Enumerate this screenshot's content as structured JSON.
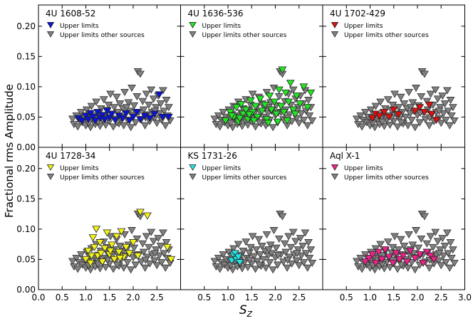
{
  "chart_data": {
    "type": "scatter",
    "ylabel": "Fractional rms Amplitude",
    "xlabel_main": "S",
    "xlabel_sub": "Z",
    "xlim": [
      0.0,
      3.0
    ],
    "ylim": [
      0.0,
      0.235
    ],
    "xticks": [
      "0.0",
      "0.5",
      "1.0",
      "1.5",
      "2.0",
      "2.5",
      "3.0"
    ],
    "yticks": [
      "0.00",
      "0.05",
      "0.10",
      "0.15",
      "0.20"
    ],
    "xtick_values": [
      0.0,
      0.5,
      1.0,
      1.5,
      2.0,
      2.5,
      3.0
    ],
    "ytick_values": [
      0.0,
      0.05,
      0.1,
      0.15,
      0.2
    ],
    "legend_label_source": "Upper limits",
    "legend_label_others": "Upper limits other sources",
    "others_color": "#808080",
    "panels": [
      {
        "title": "4U 1608-52",
        "color": "#0a14d6",
        "col": 0,
        "row": 0
      },
      {
        "title": "4U 1636-536",
        "color": "#22e622",
        "col": 1,
        "row": 0
      },
      {
        "title": "4U 1702-429",
        "color": "#e01010",
        "col": 2,
        "row": 0
      },
      {
        "title": "4U 1728-34",
        "color": "#f2f218",
        "col": 0,
        "row": 1
      },
      {
        "title": "KS 1731-26",
        "color": "#20e8e8",
        "col": 1,
        "row": 1
      },
      {
        "title": "Aql X-1",
        "color": "#f0208c",
        "col": 2,
        "row": 1
      }
    ],
    "gray_points": [
      [
        0.72,
        0.047
      ],
      [
        0.75,
        0.038
      ],
      [
        0.8,
        0.052
      ],
      [
        0.83,
        0.034
      ],
      [
        0.86,
        0.045
      ],
      [
        0.9,
        0.058
      ],
      [
        0.93,
        0.041
      ],
      [
        0.96,
        0.05
      ],
      [
        1.0,
        0.036
      ],
      [
        1.02,
        0.062
      ],
      [
        1.05,
        0.047
      ],
      [
        1.08,
        0.055
      ],
      [
        1.1,
        0.033
      ],
      [
        1.12,
        0.068
      ],
      [
        1.15,
        0.044
      ],
      [
        1.18,
        0.052
      ],
      [
        1.2,
        0.038
      ],
      [
        1.22,
        0.075
      ],
      [
        1.25,
        0.048
      ],
      [
        1.28,
        0.057
      ],
      [
        1.3,
        0.035
      ],
      [
        1.32,
        0.064
      ],
      [
        1.35,
        0.045
      ],
      [
        1.38,
        0.079
      ],
      [
        1.4,
        0.052
      ],
      [
        1.42,
        0.037
      ],
      [
        1.45,
        0.061
      ],
      [
        1.48,
        0.07
      ],
      [
        1.5,
        0.043
      ],
      [
        1.52,
        0.088
      ],
      [
        1.55,
        0.055
      ],
      [
        1.58,
        0.034
      ],
      [
        1.6,
        0.066
      ],
      [
        1.62,
        0.047
      ],
      [
        1.65,
        0.083
      ],
      [
        1.68,
        0.058
      ],
      [
        1.7,
        0.039
      ],
      [
        1.72,
        0.072
      ],
      [
        1.75,
        0.05
      ],
      [
        1.78,
        0.064
      ],
      [
        1.8,
        0.036
      ],
      [
        1.82,
        0.091
      ],
      [
        1.85,
        0.056
      ],
      [
        1.88,
        0.045
      ],
      [
        1.9,
        0.074
      ],
      [
        1.92,
        0.06
      ],
      [
        1.95,
        0.033
      ],
      [
        1.97,
        0.098
      ],
      [
        2.0,
        0.053
      ],
      [
        2.02,
        0.069
      ],
      [
        2.05,
        0.041
      ],
      [
        2.08,
        0.084
      ],
      [
        2.1,
        0.125
      ],
      [
        2.12,
        0.058
      ],
      [
        2.15,
        0.121
      ],
      [
        2.17,
        0.046
      ],
      [
        2.2,
        0.076
      ],
      [
        2.22,
        0.062
      ],
      [
        2.25,
        0.036
      ],
      [
        2.28,
        0.088
      ],
      [
        2.3,
        0.054
      ],
      [
        2.33,
        0.07
      ],
      [
        2.35,
        0.043
      ],
      [
        2.38,
        0.095
      ],
      [
        2.4,
        0.058
      ],
      [
        2.43,
        0.08
      ],
      [
        2.45,
        0.048
      ],
      [
        2.48,
        0.066
      ],
      [
        2.5,
        0.04
      ],
      [
        2.53,
        0.085
      ],
      [
        2.55,
        0.056
      ],
      [
        2.58,
        0.072
      ],
      [
        2.6,
        0.045
      ],
      [
        2.63,
        0.094
      ],
      [
        2.65,
        0.06
      ],
      [
        2.68,
        0.036
      ],
      [
        2.7,
        0.078
      ],
      [
        2.72,
        0.052
      ],
      [
        2.75,
        0.066
      ],
      [
        2.78,
        0.044
      ],
      [
        1.06,
        0.04
      ],
      [
        1.26,
        0.042
      ],
      [
        1.46,
        0.049
      ],
      [
        1.66,
        0.041
      ],
      [
        1.86,
        0.066
      ],
      [
        2.06,
        0.057
      ],
      [
        2.26,
        0.049
      ],
      [
        2.46,
        0.06
      ]
    ],
    "source_points": [
      [
        [
          0.85,
          0.048
        ],
        [
          0.92,
          0.044
        ],
        [
          1.0,
          0.052
        ],
        [
          1.05,
          0.046
        ],
        [
          1.1,
          0.056
        ],
        [
          1.15,
          0.05
        ],
        [
          1.2,
          0.044
        ],
        [
          1.25,
          0.058
        ],
        [
          1.3,
          0.048
        ],
        [
          1.35,
          0.053
        ],
        [
          1.4,
          0.046
        ],
        [
          1.45,
          0.06
        ],
        [
          1.5,
          0.049
        ],
        [
          1.55,
          0.055
        ],
        [
          1.62,
          0.045
        ],
        [
          1.7,
          0.052
        ],
        [
          1.78,
          0.048
        ],
        [
          1.85,
          0.056
        ],
        [
          1.92,
          0.044
        ],
        [
          2.0,
          0.05
        ],
        [
          2.08,
          0.058
        ],
        [
          2.15,
          0.046
        ],
        [
          2.25,
          0.052
        ],
        [
          2.35,
          0.048
        ],
        [
          2.45,
          0.055
        ],
        [
          2.55,
          0.087
        ],
        [
          2.62,
          0.05
        ],
        [
          2.75,
          0.05
        ]
      ],
      [
        [
          0.95,
          0.044
        ],
        [
          1.05,
          0.058
        ],
        [
          1.12,
          0.05
        ],
        [
          1.18,
          0.066
        ],
        [
          1.22,
          0.042
        ],
        [
          1.28,
          0.071
        ],
        [
          1.32,
          0.055
        ],
        [
          1.38,
          0.062
        ],
        [
          1.42,
          0.046
        ],
        [
          1.48,
          0.077
        ],
        [
          1.52,
          0.058
        ],
        [
          1.58,
          0.068
        ],
        [
          1.62,
          0.05
        ],
        [
          1.68,
          0.08
        ],
        [
          1.72,
          0.06
        ],
        [
          1.78,
          0.07
        ],
        [
          1.82,
          0.046
        ],
        [
          1.88,
          0.085
        ],
        [
          1.92,
          0.062
        ],
        [
          1.98,
          0.075
        ],
        [
          2.02,
          0.055
        ],
        [
          2.08,
          0.095
        ],
        [
          2.12,
          0.068
        ],
        [
          2.15,
          0.128
        ],
        [
          2.18,
          0.058
        ],
        [
          2.22,
          0.09
        ],
        [
          2.28,
          0.075
        ],
        [
          2.32,
          0.106
        ],
        [
          2.38,
          0.062
        ],
        [
          2.45,
          0.085
        ],
        [
          2.52,
          0.072
        ],
        [
          2.6,
          0.1
        ],
        [
          2.68,
          0.066
        ],
        [
          2.75,
          0.09
        ],
        [
          1.25,
          0.048
        ],
        [
          1.55,
          0.044
        ],
        [
          1.85,
          0.04
        ],
        [
          2.05,
          0.042
        ],
        [
          2.25,
          0.044
        ],
        [
          2.42,
          0.055
        ],
        [
          1.08,
          0.052
        ],
        [
          1.45,
          0.054
        ]
      ],
      [
        [
          1.05,
          0.048
        ],
        [
          1.12,
          0.055
        ],
        [
          1.2,
          0.052
        ],
        [
          1.3,
          0.058
        ],
        [
          1.4,
          0.05
        ],
        [
          1.5,
          0.062
        ],
        [
          1.6,
          0.054
        ],
        [
          1.95,
          0.06
        ],
        [
          2.05,
          0.066
        ],
        [
          2.15,
          0.058
        ],
        [
          2.25,
          0.07
        ],
        [
          2.3,
          0.055
        ],
        [
          2.4,
          0.045
        ]
      ],
      [
        [
          1.0,
          0.05
        ],
        [
          1.05,
          0.064
        ],
        [
          1.1,
          0.044
        ],
        [
          1.15,
          0.086
        ],
        [
          1.18,
          0.07
        ],
        [
          1.22,
          0.1
        ],
        [
          1.25,
          0.056
        ],
        [
          1.3,
          0.078
        ],
        [
          1.35,
          0.046
        ],
        [
          1.4,
          0.068
        ],
        [
          1.45,
          0.094
        ],
        [
          1.5,
          0.058
        ],
        [
          1.55,
          0.074
        ],
        [
          1.6,
          0.05
        ],
        [
          1.65,
          0.088
        ],
        [
          1.7,
          0.062
        ],
        [
          1.75,
          0.096
        ],
        [
          1.8,
          0.054
        ],
        [
          1.85,
          0.07
        ],
        [
          1.92,
          0.06
        ],
        [
          2.0,
          0.078
        ],
        [
          2.1,
          0.056
        ],
        [
          2.15,
          0.128
        ],
        [
          2.3,
          0.122
        ],
        [
          2.72,
          0.07
        ],
        [
          2.8,
          0.05
        ],
        [
          1.12,
          0.056
        ],
        [
          1.32,
          0.06
        ],
        [
          1.52,
          0.064
        ],
        [
          1.72,
          0.052
        ]
      ],
      [
        [
          1.08,
          0.048
        ],
        [
          1.12,
          0.056
        ],
        [
          1.15,
          0.06
        ],
        [
          1.18,
          0.05
        ],
        [
          1.22,
          0.054
        ],
        [
          1.25,
          0.045
        ]
      ],
      [
        [
          0.9,
          0.046
        ],
        [
          0.98,
          0.052
        ],
        [
          1.05,
          0.058
        ],
        [
          1.12,
          0.044
        ],
        [
          1.18,
          0.062
        ],
        [
          1.25,
          0.05
        ],
        [
          1.32,
          0.066
        ],
        [
          1.4,
          0.054
        ],
        [
          1.48,
          0.044
        ],
        [
          1.55,
          0.06
        ],
        [
          1.62,
          0.05
        ],
        [
          1.7,
          0.056
        ],
        [
          1.78,
          0.046
        ],
        [
          1.85,
          0.064
        ],
        [
          1.95,
          0.052
        ],
        [
          2.05,
          0.058
        ],
        [
          2.12,
          0.044
        ],
        [
          2.2,
          0.062
        ],
        [
          2.28,
          0.056
        ],
        [
          2.35,
          0.05
        ]
      ]
    ]
  }
}
